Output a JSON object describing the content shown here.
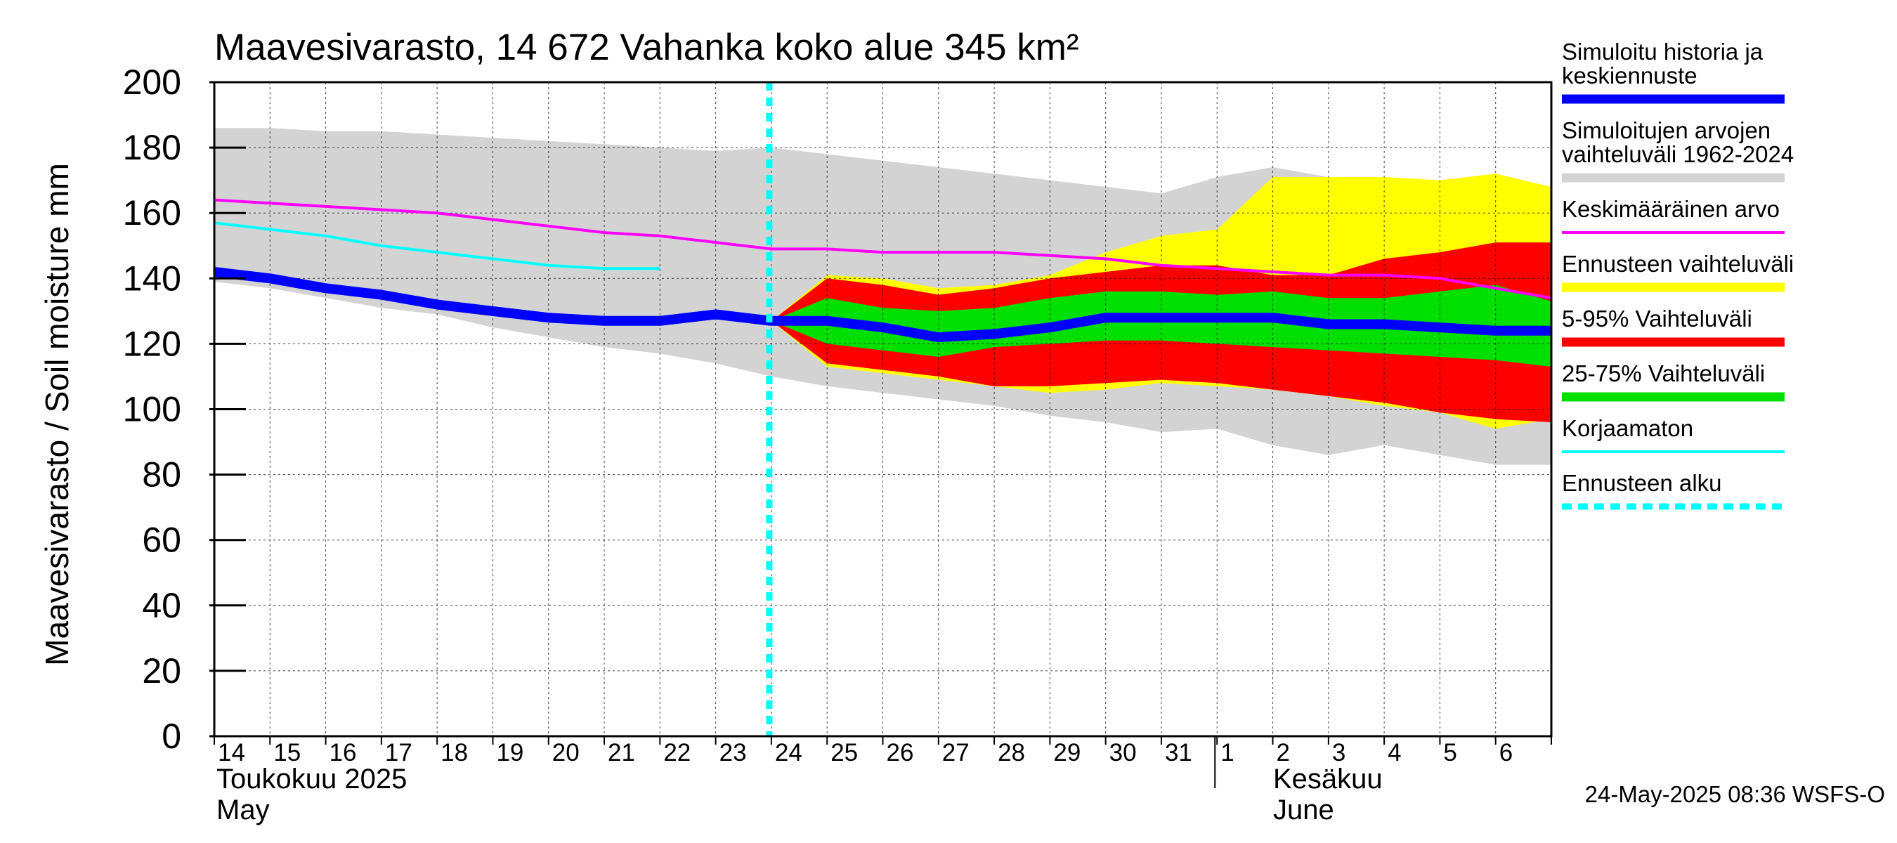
{
  "chart_data": {
    "type": "area",
    "title": "Maavesivarasto, 14 672 Vahanka koko alue 345 km²",
    "ylabel": "Maavesivarasto / Soil moisture   mm",
    "ylim": [
      0,
      200
    ],
    "yticks": [
      "0",
      "20",
      "40",
      "60",
      "80",
      "100",
      "120",
      "140",
      "160",
      "180",
      "200"
    ],
    "x_days": [
      "14",
      "15",
      "16",
      "17",
      "18",
      "19",
      "20",
      "21",
      "22",
      "23",
      "24",
      "25",
      "26",
      "27",
      "28",
      "29",
      "30",
      "31",
      "1",
      "2",
      "3",
      "4",
      "5",
      "6"
    ],
    "month_labels": {
      "may_fi": "Toukokuu  2025",
      "may_en": "May",
      "june_fi": "Kesäkuu",
      "june_en": "June"
    },
    "forecast_start_day_index": 10,
    "series": [
      {
        "name": "Simuloitujen arvojen vaihteluväli 1962-2024",
        "color": "#d3d3d3",
        "x": [
          0,
          1,
          2,
          3,
          4,
          5,
          6,
          7,
          8,
          9,
          10,
          11,
          12,
          13,
          14,
          15,
          16,
          17,
          18,
          19,
          20,
          21,
          22,
          23,
          24
        ],
        "upper": [
          186,
          186,
          185,
          185,
          184,
          183,
          182,
          181,
          180,
          179,
          180,
          178,
          176,
          174,
          172,
          170,
          168,
          166,
          171,
          174,
          171,
          170,
          168,
          167,
          165
        ],
        "lower": [
          139,
          137,
          134,
          131,
          129,
          125,
          122,
          119,
          117,
          114,
          110,
          107,
          105,
          103,
          101,
          98,
          96,
          93,
          94,
          89,
          86,
          89,
          86,
          83,
          83
        ]
      },
      {
        "name": "Ennusteen vaihteluväli",
        "color": "#ffff00",
        "x": [
          10,
          11,
          12,
          13,
          14,
          15,
          16,
          17,
          18,
          19,
          20,
          21,
          22,
          23,
          24
        ],
        "upper": [
          127,
          141,
          140,
          137,
          138,
          141,
          148,
          153,
          155,
          171,
          171,
          171,
          170,
          172,
          168
        ],
        "lower": [
          127,
          113,
          111,
          109,
          107,
          105,
          106,
          108,
          107,
          106,
          104,
          101,
          99,
          94,
          97
        ]
      },
      {
        "name": "5-95% Vaihteluväli",
        "color": "#ff0000",
        "x": [
          10,
          11,
          12,
          13,
          14,
          15,
          16,
          17,
          18,
          19,
          20,
          21,
          22,
          23,
          24
        ],
        "upper": [
          127,
          140,
          138,
          135,
          137,
          140,
          142,
          144,
          144,
          141,
          141,
          146,
          148,
          151,
          151
        ],
        "lower": [
          127,
          114,
          112,
          110,
          107,
          107,
          108,
          109,
          108,
          106,
          104,
          102,
          99,
          97,
          96
        ]
      },
      {
        "name": "25-75% Vaihteluväli",
        "color": "#00e000",
        "x": [
          10,
          11,
          12,
          13,
          14,
          15,
          16,
          17,
          18,
          19,
          20,
          21,
          22,
          23,
          24
        ],
        "upper": [
          127,
          134,
          131,
          130,
          131,
          134,
          136,
          136,
          135,
          136,
          134,
          134,
          136,
          138,
          133
        ],
        "lower": [
          127,
          120,
          118,
          116,
          119,
          120,
          121,
          121,
          120,
          119,
          118,
          117,
          116,
          115,
          113
        ]
      },
      {
        "name": "Keskimääräinen arvo",
        "color": "#ff00ff",
        "x": [
          0,
          1,
          2,
          3,
          4,
          5,
          6,
          7,
          8,
          9,
          10,
          11,
          12,
          13,
          14,
          15,
          16,
          17,
          18,
          19,
          20,
          21,
          22,
          23,
          24
        ],
        "values": [
          164,
          163,
          162,
          161,
          160,
          158,
          156,
          154,
          153,
          151,
          149,
          149,
          148,
          148,
          148,
          147,
          146,
          144,
          143,
          142,
          141,
          141,
          140,
          137,
          134
        ]
      },
      {
        "name": "Korjaamaton",
        "color": "#00ffff",
        "x": [
          0,
          1,
          2,
          3,
          4,
          5,
          6,
          7,
          8
        ],
        "values": [
          157,
          155,
          153,
          150,
          148,
          146,
          144,
          143,
          143
        ]
      },
      {
        "name": "Simuloitu historia ja keskiennuste",
        "color": "#0000ff",
        "x": [
          0,
          1,
          2,
          3,
          4,
          5,
          6,
          7,
          8,
          9,
          10,
          11,
          12,
          13,
          14,
          15,
          16,
          17,
          18,
          19,
          20,
          21,
          22,
          23,
          24
        ],
        "values": [
          142,
          140,
          137,
          135,
          132,
          130,
          128,
          127,
          127,
          129,
          127,
          127,
          125,
          122,
          123,
          125,
          128,
          128,
          128,
          128,
          126,
          126,
          125,
          124,
          124
        ]
      }
    ],
    "legend": [
      {
        "label_lines": [
          "Simuloitu historia ja",
          "keskiennuste"
        ],
        "color": "#0000ff",
        "style": "thick"
      },
      {
        "label_lines": [
          "Simuloitujen arvojen",
          "vaihteluväli 1962-2024"
        ],
        "color": "#d3d3d3",
        "style": "thick"
      },
      {
        "label_lines": [
          "Keskimääräinen arvo"
        ],
        "color": "#ff00ff",
        "style": "thin"
      },
      {
        "label_lines": [
          "Ennusteen vaihteluväli"
        ],
        "color": "#ffff00",
        "style": "thick"
      },
      {
        "label_lines": [
          "5-95% Vaihteluväli"
        ],
        "color": "#ff0000",
        "style": "thick"
      },
      {
        "label_lines": [
          "25-75% Vaihteluväli"
        ],
        "color": "#00e000",
        "style": "thick"
      },
      {
        "label_lines": [
          "Korjaamaton"
        ],
        "color": "#00ffff",
        "style": "thin"
      },
      {
        "label_lines": [
          "Ennusteen alku"
        ],
        "color": "#00ffff",
        "style": "dashed"
      }
    ],
    "timestamp": "24-May-2025 08:36 WSFS-O"
  }
}
